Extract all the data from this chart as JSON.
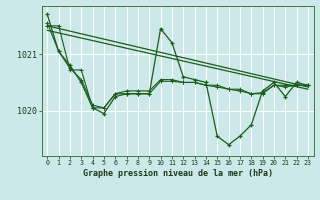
{
  "bg_color": "#cce8e8",
  "grid_color": "#ffffff",
  "line_color": "#1a5c1a",
  "title": "Graphe pression niveau de la mer (hPa)",
  "xlabel_ticks": [
    0,
    1,
    2,
    3,
    4,
    5,
    6,
    7,
    8,
    9,
    10,
    11,
    12,
    13,
    14,
    15,
    16,
    17,
    18,
    19,
    20,
    21,
    22,
    23
  ],
  "yticks": [
    1020,
    1021
  ],
  "ylim": [
    1019.2,
    1021.85
  ],
  "xlim": [
    -0.5,
    23.5
  ],
  "series_main": {
    "x": [
      0,
      1,
      2,
      3,
      4,
      5,
      6,
      7,
      8,
      9,
      10,
      11,
      12,
      13,
      14,
      15,
      16,
      17,
      18,
      19,
      20,
      21,
      22,
      23
    ],
    "y": [
      1021.7,
      1021.05,
      1020.8,
      1020.5,
      1020.05,
      1019.95,
      1020.25,
      1020.3,
      1020.3,
      1020.3,
      1021.45,
      1021.2,
      1020.6,
      1020.55,
      1020.5,
      1019.55,
      1019.4,
      1019.55,
      1019.75,
      1020.35,
      1020.5,
      1020.25,
      1020.5,
      1020.45
    ]
  },
  "series_smooth1": {
    "x": [
      0,
      1,
      2,
      3,
      4,
      5,
      6,
      7,
      8,
      9,
      10,
      11,
      12,
      13,
      14,
      15,
      16,
      17,
      18,
      19,
      20,
      21,
      22,
      23
    ],
    "y": [
      1021.55,
      1021.05,
      1020.75,
      1020.55,
      1020.1,
      1020.05,
      1020.3,
      1020.35,
      1020.35,
      1020.35,
      1020.55,
      1020.55,
      1020.5,
      1020.5,
      1020.45,
      1020.42,
      1020.38,
      1020.35,
      1020.3,
      1020.32,
      1020.45,
      1020.42,
      1020.45,
      1020.45
    ]
  },
  "series_smooth2": {
    "x": [
      0,
      1,
      2,
      3,
      4,
      5,
      6,
      7,
      8,
      9,
      10,
      11,
      12,
      13,
      14,
      15,
      16,
      17,
      18,
      19,
      20,
      21,
      22,
      23
    ],
    "y": [
      1021.5,
      1021.5,
      1020.72,
      1020.72,
      1020.05,
      1020.05,
      1020.3,
      1020.3,
      1020.3,
      1020.3,
      1020.52,
      1020.52,
      1020.5,
      1020.5,
      1020.45,
      1020.45,
      1020.38,
      1020.38,
      1020.3,
      1020.3,
      1020.45,
      1020.45,
      1020.45,
      1020.45
    ]
  },
  "series_trend1": {
    "x": [
      0,
      23
    ],
    "y": [
      1021.5,
      1020.42
    ]
  },
  "series_trend2": {
    "x": [
      0,
      23
    ],
    "y": [
      1021.42,
      1020.38
    ]
  }
}
